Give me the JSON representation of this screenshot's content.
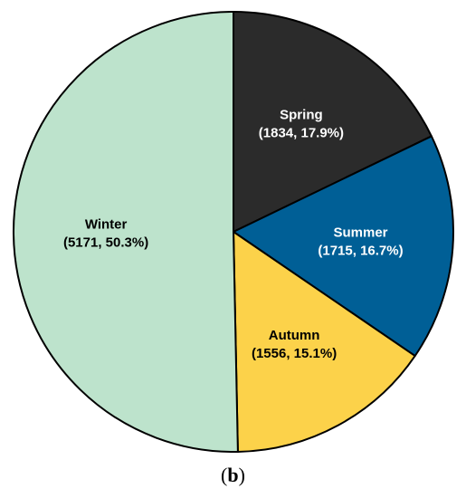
{
  "chart_data": {
    "type": "pie",
    "title": "",
    "slices": [
      {
        "label": "Spring",
        "value": 1834,
        "percent": "17.9%",
        "color": "#2b2b2b",
        "text_color": "#ffffff"
      },
      {
        "label": "Summer",
        "value": 1715,
        "percent": "16.7%",
        "color": "#005f96",
        "text_color": "#ffffff"
      },
      {
        "label": "Autumn",
        "value": 1556,
        "percent": "15.1%",
        "color": "#fcd24a",
        "text_color": "#000000"
      },
      {
        "label": "Winter",
        "value": 5171,
        "percent": "50.3%",
        "color": "#bde3cc",
        "text_color": "#000000"
      }
    ],
    "start_angle": "12 o'clock",
    "direction": "clockwise",
    "outline_color": "#000000"
  },
  "panel": {
    "open": "(",
    "letter": "b",
    "close": ")"
  }
}
